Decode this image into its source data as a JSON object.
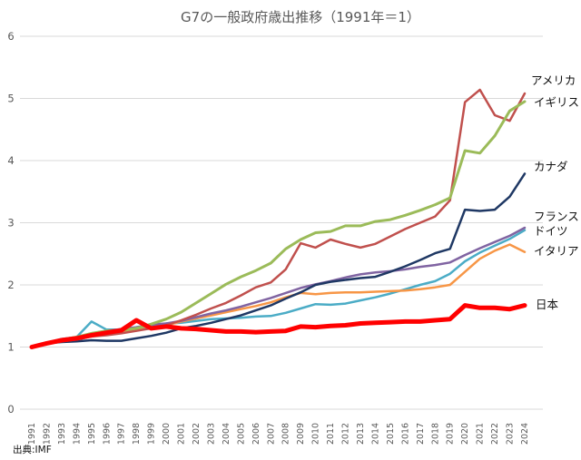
{
  "chart_data": {
    "type": "line",
    "title": "G7の一般政府歳出推移（1991年＝1）",
    "source": "出典:IMF",
    "xlabel": "",
    "ylabel": "",
    "ylim": [
      0,
      6
    ],
    "yticks": [
      "0",
      "1",
      "2",
      "3",
      "4",
      "5",
      "6"
    ],
    "grid": true,
    "x": [
      "1991",
      "1992",
      "1993",
      "1994",
      "1995",
      "1996",
      "1997",
      "1998",
      "1999",
      "2000",
      "2001",
      "2002",
      "2003",
      "2004",
      "2005",
      "2006",
      "2007",
      "2008",
      "2009",
      "2010",
      "2011",
      "2012",
      "2013",
      "2014",
      "2015",
      "2016",
      "2017",
      "2018",
      "2019",
      "2020",
      "2021",
      "2022",
      "2023",
      "2024"
    ],
    "series": [
      {
        "name": "ドイツ",
        "color": "#4bacc6",
        "width": 2.5,
        "values": [
          1.0,
          1.06,
          1.12,
          1.16,
          1.41,
          1.28,
          1.28,
          1.3,
          1.33,
          1.38,
          1.39,
          1.42,
          1.45,
          1.46,
          1.47,
          1.49,
          1.5,
          1.55,
          1.62,
          1.69,
          1.68,
          1.7,
          1.75,
          1.8,
          1.86,
          1.93,
          2.0,
          2.06,
          2.18,
          2.38,
          2.52,
          2.63,
          2.74,
          2.88
        ]
      },
      {
        "name": "イタリア",
        "color": "#f79646",
        "width": 2.5,
        "values": [
          1.0,
          1.07,
          1.12,
          1.15,
          1.18,
          1.25,
          1.26,
          1.27,
          1.31,
          1.35,
          1.41,
          1.46,
          1.51,
          1.56,
          1.61,
          1.66,
          1.72,
          1.8,
          1.87,
          1.85,
          1.87,
          1.88,
          1.88,
          1.89,
          1.9,
          1.91,
          1.93,
          1.96,
          2.0,
          2.21,
          2.42,
          2.55,
          2.65,
          2.53
        ]
      },
      {
        "name": "フランス",
        "color": "#8064a2",
        "width": 2.5,
        "values": [
          1.0,
          1.07,
          1.13,
          1.16,
          1.22,
          1.26,
          1.29,
          1.32,
          1.36,
          1.38,
          1.42,
          1.48,
          1.54,
          1.59,
          1.65,
          1.72,
          1.79,
          1.87,
          1.95,
          2.01,
          2.06,
          2.12,
          2.17,
          2.2,
          2.22,
          2.25,
          2.29,
          2.32,
          2.36,
          2.48,
          2.59,
          2.69,
          2.79,
          2.92
        ]
      },
      {
        "name": "カナダ",
        "color": "#1f3864",
        "width": 2.5,
        "values": [
          1.0,
          1.06,
          1.08,
          1.09,
          1.11,
          1.1,
          1.1,
          1.14,
          1.18,
          1.23,
          1.3,
          1.34,
          1.39,
          1.45,
          1.51,
          1.59,
          1.67,
          1.78,
          1.88,
          2.0,
          2.05,
          2.08,
          2.11,
          2.13,
          2.21,
          2.3,
          2.4,
          2.51,
          2.58,
          3.21,
          3.19,
          3.21,
          3.42,
          3.79
        ]
      },
      {
        "name": "アメリカ",
        "color": "#c0504d",
        "width": 2.5,
        "values": [
          1.0,
          1.06,
          1.09,
          1.12,
          1.17,
          1.19,
          1.22,
          1.26,
          1.3,
          1.35,
          1.43,
          1.52,
          1.62,
          1.71,
          1.83,
          1.96,
          2.04,
          2.25,
          2.67,
          2.6,
          2.73,
          2.66,
          2.6,
          2.66,
          2.78,
          2.9,
          3.0,
          3.1,
          3.36,
          4.94,
          5.14,
          4.73,
          4.64,
          5.08
        ]
      },
      {
        "name": "イギリス",
        "color": "#9bbb59",
        "width": 3,
        "values": [
          1.0,
          1.07,
          1.12,
          1.16,
          1.22,
          1.26,
          1.27,
          1.3,
          1.37,
          1.45,
          1.56,
          1.71,
          1.86,
          2.01,
          2.13,
          2.23,
          2.35,
          2.58,
          2.73,
          2.84,
          2.86,
          2.95,
          2.95,
          3.02,
          3.05,
          3.12,
          3.2,
          3.29,
          3.4,
          4.16,
          4.12,
          4.4,
          4.8,
          4.95
        ]
      },
      {
        "name": "日本",
        "color": "#ff0000",
        "width": 5,
        "values": [
          1.0,
          1.06,
          1.11,
          1.14,
          1.19,
          1.23,
          1.27,
          1.43,
          1.3,
          1.33,
          1.3,
          1.29,
          1.27,
          1.25,
          1.25,
          1.24,
          1.25,
          1.26,
          1.33,
          1.32,
          1.34,
          1.35,
          1.38,
          1.39,
          1.4,
          1.41,
          1.41,
          1.43,
          1.45,
          1.67,
          1.63,
          1.63,
          1.61,
          1.67
        ]
      }
    ],
    "labels": [
      {
        "series": "アメリカ",
        "text": "アメリカ"
      },
      {
        "series": "イギリス",
        "text": "イギリス"
      },
      {
        "series": "カナダ",
        "text": "カナダ"
      },
      {
        "series": "フランス",
        "text": "フランス"
      },
      {
        "series": "ドイツ",
        "text": "ドイツ"
      },
      {
        "series": "イタリア",
        "text": "イタリア"
      },
      {
        "series": "日本",
        "text": "日本"
      }
    ]
  }
}
